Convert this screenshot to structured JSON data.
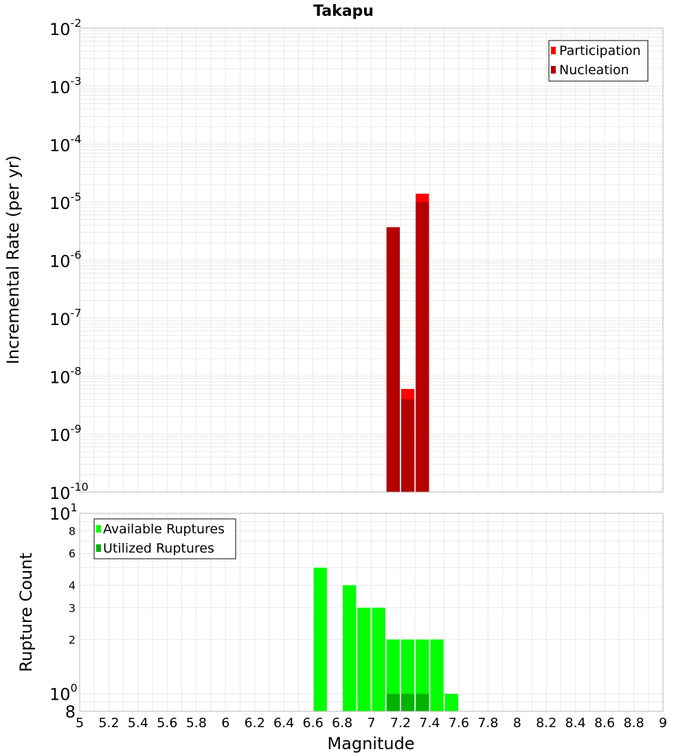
{
  "title": "Takapu",
  "colors": {
    "participation": "#ff0000",
    "nucleation": "#b40000",
    "available": "#00ff00",
    "utilized": "#00b400",
    "grid": "#e8e8e8",
    "frame": "#b4b4b4"
  },
  "chart_data": [
    {
      "type": "bar",
      "title": "Takapu",
      "xlabel": "Magnitude",
      "ylabel": "Incremental Rate (per yr)",
      "yscale": "log",
      "xlim": [
        5,
        9
      ],
      "ylim": [
        1e-10,
        0.01
      ],
      "bar_width": 0.1,
      "y_ticks": [
        {
          "base": "10",
          "exp": "-2"
        },
        {
          "base": "10",
          "exp": "-3"
        },
        {
          "base": "10",
          "exp": "-4"
        },
        {
          "base": "10",
          "exp": "-5"
        },
        {
          "base": "10",
          "exp": "-6"
        },
        {
          "base": "10",
          "exp": "-7"
        },
        {
          "base": "10",
          "exp": "-8"
        },
        {
          "base": "10",
          "exp": "-9"
        },
        {
          "base": "10",
          "exp": "-10"
        }
      ],
      "legend": {
        "position": "top-right",
        "entries": [
          "Participation",
          "Nucleation"
        ]
      },
      "series": [
        {
          "name": "Participation",
          "x": [
            7.15,
            7.25,
            7.35
          ],
          "values": [
            3.7e-06,
            6e-09,
            1.4e-05
          ]
        },
        {
          "name": "Nucleation",
          "x": [
            7.15,
            7.25,
            7.35
          ],
          "values": [
            3.7e-06,
            4e-09,
            1e-05
          ]
        }
      ]
    },
    {
      "type": "bar",
      "xlabel": "Magnitude",
      "ylabel": "Rupture Count",
      "yscale": "log",
      "xlim": [
        5,
        9
      ],
      "ylim": [
        0.8,
        10
      ],
      "bar_width": 0.1,
      "x_ticks": [
        "5",
        "5.2",
        "5.4",
        "5.6",
        "5.8",
        "6",
        "6.2",
        "6.4",
        "6.6",
        "6.8",
        "7",
        "7.2",
        "7.4",
        "7.6",
        "7.8",
        "8",
        "8.2",
        "8.4",
        "8.6",
        "8.8",
        "9"
      ],
      "y_ticks": [
        {
          "base": "10",
          "exp": "1",
          "value": 10
        },
        {
          "base": "8",
          "value": 8
        },
        {
          "base": "6",
          "value": 6
        },
        {
          "base": "4",
          "value": 4
        },
        {
          "base": "3",
          "value": 3
        },
        {
          "base": "2",
          "value": 2
        },
        {
          "base": "10",
          "exp": "0",
          "value": 1
        },
        {
          "base": "8",
          "value": 0.8
        }
      ],
      "legend": {
        "position": "top-left",
        "entries": [
          "Available Ruptures",
          "Utilized Ruptures"
        ]
      },
      "series": [
        {
          "name": "Available Ruptures",
          "x": [
            6.65,
            6.85,
            6.95,
            7.05,
            7.15,
            7.25,
            7.35,
            7.45,
            7.55
          ],
          "values": [
            5,
            4,
            3,
            3,
            2,
            2,
            2,
            2,
            1
          ]
        },
        {
          "name": "Utilized Ruptures",
          "x": [
            7.15,
            7.25,
            7.35
          ],
          "values": [
            1,
            1,
            1
          ]
        }
      ]
    }
  ]
}
